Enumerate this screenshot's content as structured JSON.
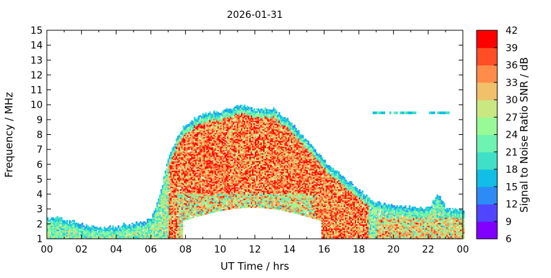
{
  "chart_data": {
    "type": "heatmap",
    "title": "2026-01-31",
    "xlabel": "UT Time / hrs",
    "ylabel": "Frequency / MHz",
    "colorbar_label": "Signal to Noise Ratio SNR / dB",
    "xlim": [
      0,
      24
    ],
    "ylim": [
      1,
      15
    ],
    "x_ticks": [
      "00",
      "02",
      "04",
      "06",
      "08",
      "10",
      "12",
      "14",
      "16",
      "18",
      "20",
      "22",
      "00"
    ],
    "y_ticks": [
      "1",
      "2",
      "3",
      "4",
      "5",
      "6",
      "7",
      "8",
      "9",
      "10",
      "11",
      "12",
      "13",
      "14",
      "15"
    ],
    "snr_range_db": [
      6,
      42
    ],
    "colorbar_ticks": [
      "6",
      "9",
      "12",
      "15",
      "18",
      "21",
      "24",
      "27",
      "30",
      "33",
      "36",
      "39",
      "42"
    ],
    "colorbar_colors": [
      "#8000ff",
      "#4f46ff",
      "#2d8bf5",
      "#12bde6",
      "#3ee0c8",
      "#6ef3b0",
      "#98fa96",
      "#c9e882",
      "#f1c06a",
      "#ff8c4a",
      "#ff4d28",
      "#ff0000"
    ],
    "grid": false,
    "description_series": [
      {
        "name": "upper_edge_mhz",
        "x": [
          0,
          1,
          2,
          3,
          4,
          5,
          6,
          6.5,
          7,
          7.5,
          8,
          9,
          10,
          11,
          12,
          13,
          14,
          15,
          16,
          17,
          18,
          19,
          20,
          21,
          22,
          22.5,
          23,
          24
        ],
        "values": [
          2.4,
          2.3,
          1.9,
          1.7,
          1.8,
          2.0,
          2.3,
          4.0,
          6.5,
          7.8,
          8.7,
          9.4,
          9.5,
          9.9,
          9.7,
          9.7,
          8.8,
          7.5,
          6.2,
          5.2,
          4.2,
          3.4,
          3.2,
          3.1,
          3.0,
          4.0,
          3.0,
          2.9
        ]
      },
      {
        "name": "lower_edge_mhz",
        "x": [
          0,
          24
        ],
        "values": [
          1,
          1
        ]
      }
    ]
  }
}
